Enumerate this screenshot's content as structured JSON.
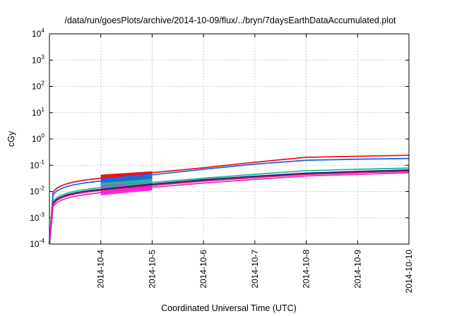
{
  "chart_data": {
    "type": "line",
    "title": "/data/run/goesPlots/archive/2014-10-09/flux/../bryn/7daysEarthDataAccumulated.plot",
    "xlabel": "Coordinated Universal Time (UTC)",
    "ylabel": "cGy",
    "y_scale": "log",
    "ylim": [
      0.0001,
      10000
    ],
    "xlim": [
      "2014-10-03",
      "2014-10-10"
    ],
    "grid": true,
    "legend": "none",
    "x_ticks": [
      "2014-10-4",
      "2014-10-5",
      "2014-10-6",
      "2014-10-7",
      "2014-10-8",
      "2014-10-9",
      "2014-10-10"
    ],
    "y_ticks": [
      {
        "base": "10",
        "exp": "-4"
      },
      {
        "base": "10",
        "exp": "-3"
      },
      {
        "base": "10",
        "exp": "-2"
      },
      {
        "base": "10",
        "exp": "-1"
      },
      {
        "base": "10",
        "exp": "0"
      },
      {
        "base": "10",
        "exp": "1"
      },
      {
        "base": "10",
        "exp": "2"
      },
      {
        "base": "10",
        "exp": "3"
      },
      {
        "base": "10",
        "exp": "4"
      }
    ],
    "series": [
      {
        "color": "#e8141c",
        "x": [
          "2014-10-03",
          "2014-10-03.5",
          "2014-10-04",
          "2014-10-05",
          "2014-10-06",
          "2014-10-07",
          "2014-10-08",
          "2014-10-09",
          "2014-10-10"
        ],
        "values": [
          0.0001,
          0.012,
          0.032,
          0.052,
          0.08,
          0.13,
          0.2,
          0.22,
          0.24
        ]
      },
      {
        "color": "#1e6be0",
        "x": [
          "2014-10-03",
          "2014-10-03.5",
          "2014-10-04",
          "2014-10-05",
          "2014-10-06",
          "2014-10-07",
          "2014-10-08",
          "2014-10-09",
          "2014-10-10"
        ],
        "values": [
          0.0001,
          0.01,
          0.025,
          0.043,
          0.07,
          0.11,
          0.155,
          0.17,
          0.18
        ]
      },
      {
        "color": "#22b89a",
        "x": [
          "2014-10-03",
          "2014-10-03.5",
          "2014-10-04",
          "2014-10-05",
          "2014-10-06",
          "2014-10-07",
          "2014-10-08",
          "2014-10-09",
          "2014-10-10"
        ],
        "values": [
          0.0001,
          0.006,
          0.014,
          0.022,
          0.032,
          0.045,
          0.062,
          0.07,
          0.078
        ]
      },
      {
        "color": "#1a1a6e",
        "x": [
          "2014-10-03",
          "2014-10-03.5",
          "2014-10-04",
          "2014-10-05",
          "2014-10-06",
          "2014-10-07",
          "2014-10-08",
          "2014-10-09",
          "2014-10-10"
        ],
        "values": [
          0.0001,
          0.005,
          0.012,
          0.019,
          0.028,
          0.038,
          0.05,
          0.058,
          0.066
        ]
      },
      {
        "color": "#c21f6a",
        "x": [
          "2014-10-03",
          "2014-10-03.5",
          "2014-10-04",
          "2014-10-05",
          "2014-10-06",
          "2014-10-07",
          "2014-10-08",
          "2014-10-09",
          "2014-10-10"
        ],
        "values": [
          0.0001,
          0.0045,
          0.011,
          0.017,
          0.025,
          0.034,
          0.045,
          0.052,
          0.059
        ]
      },
      {
        "color": "#ff1fd8",
        "x": [
          "2014-10-03",
          "2014-10-03.5",
          "2014-10-04",
          "2014-10-05",
          "2014-10-06",
          "2014-10-07",
          "2014-10-08",
          "2014-10-09",
          "2014-10-10"
        ],
        "values": [
          0.0001,
          0.0035,
          0.009,
          0.0145,
          0.021,
          0.029,
          0.039,
          0.045,
          0.052
        ]
      }
    ],
    "fan_bundles": [
      {
        "color": "#e8141c",
        "x0": "2014-10-04",
        "x1": "2014-10-05",
        "low": [
          0.024,
          0.034
        ],
        "high": [
          0.042,
          0.056
        ]
      },
      {
        "color": "#1e6be0",
        "x0": "2014-10-04",
        "x1": "2014-10-05",
        "low": [
          0.017,
          0.027
        ],
        "high": [
          0.033,
          0.045
        ]
      },
      {
        "color": "#22b89a",
        "x0": "2014-10-04",
        "x1": "2014-10-05",
        "low": [
          0.011,
          0.019
        ],
        "high": [
          0.02,
          0.029
        ]
      },
      {
        "color": "#ff1fd8",
        "x0": "2014-10-04",
        "x1": "2014-10-05",
        "low": [
          0.0075,
          0.0115
        ],
        "high": [
          0.016,
          0.022
        ]
      }
    ]
  }
}
